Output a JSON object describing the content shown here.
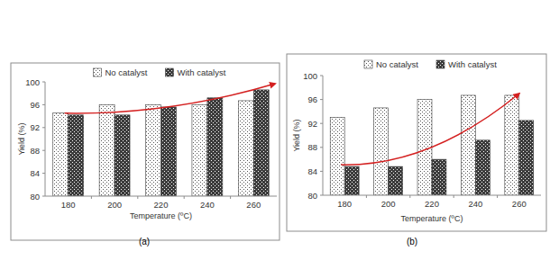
{
  "chart_data": [
    {
      "type": "bar",
      "annotations": [
        "(a)"
      ],
      "x_label": "Temperature (ºC)",
      "y_label": "Yield (%)",
      "categories": [
        "180",
        "200",
        "220",
        "240",
        "260"
      ],
      "series": [
        {
          "name": "No catalyst",
          "color": "#ffffff",
          "values": [
            94.6,
            96,
            96,
            96,
            96.7
          ]
        },
        {
          "name": "With catalyst",
          "color": "#3c3c3c",
          "values": [
            94.2,
            94.2,
            95.6,
            97.2,
            98.6
          ]
        }
      ],
      "ylim": [
        80,
        100
      ],
      "yticks": [
        80,
        84,
        88,
        92,
        96,
        100
      ],
      "grid": false,
      "legend": "top"
    },
    {
      "type": "bar",
      "annotations": [
        "(b)"
      ],
      "x_label": "Temperature (ºC)",
      "y_label": "Yield (%)",
      "categories": [
        "180",
        "200",
        "220",
        "240",
        "260"
      ],
      "series": [
        {
          "name": "No catalyst",
          "color": "#ffffff",
          "values": [
            93,
            94.6,
            96,
            96.7,
            96.7
          ]
        },
        {
          "name": "With catalyst",
          "color": "#3c3c3c",
          "values": [
            84.8,
            84.8,
            86,
            89.2,
            92.5
          ]
        }
      ],
      "ylim": [
        80,
        100
      ],
      "yticks": [
        80,
        84,
        88,
        92,
        96,
        100
      ],
      "grid": false,
      "legend": "top"
    }
  ]
}
